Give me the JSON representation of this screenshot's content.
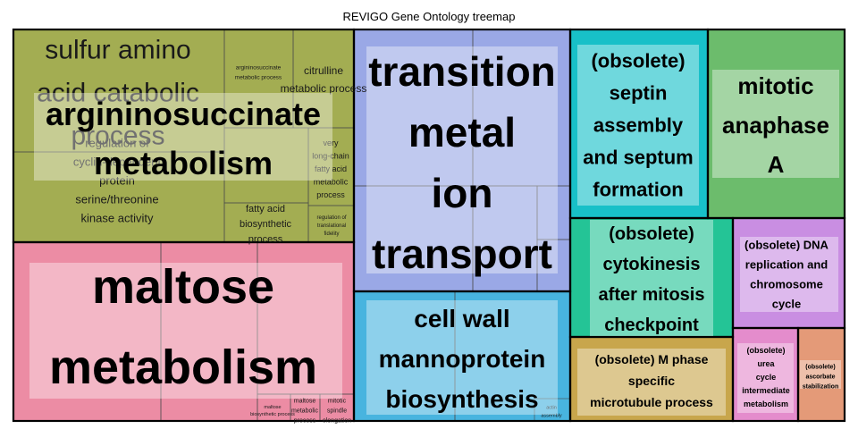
{
  "chart_data": {
    "type": "treemap",
    "title": "REVIGO Gene Ontology treemap",
    "groups": [
      {
        "name": "argininosuccinate metabolism",
        "color": "#a3ad52",
        "terms": [
          "sulfur amino acid catabolic process",
          "regulation of cyclin-dependent protein serine/threonine kinase activity",
          "argininosuccinate metabolic process",
          "citrulline metabolic process",
          "very long-chain fatty acid metabolic process",
          "fatty acid biosynthetic process",
          "regulation of translational fidelity"
        ]
      },
      {
        "name": "maltose metabolism",
        "color": "#ec8ca4",
        "terms": [
          "maltose biosynthetic process",
          "maltose metabolic process",
          "mitotic spindle elongation"
        ]
      },
      {
        "name": "transition metal ion transport",
        "color": "#9aa8e6",
        "terms": []
      },
      {
        "name": "cell wall mannoprotein biosynthesis",
        "color": "#48b4df",
        "terms": [
          "actin assembly"
        ]
      },
      {
        "name": "(obsolete) septin assembly and septum formation",
        "color": "#18c0c8",
        "terms": []
      },
      {
        "name": "mitotic anaphase A",
        "color": "#6cbc6c",
        "terms": []
      },
      {
        "name": "(obsolete) cytokinesis after mitosis checkpoint",
        "color": "#24c496",
        "terms": []
      },
      {
        "name": "(obsolete) DNA replication and chromosome cycle",
        "color": "#c98ee2",
        "terms": []
      },
      {
        "name": "(obsolete) M phase specific microtubule process",
        "color": "#c8a64c",
        "terms": []
      },
      {
        "name": "(obsolete) urea cycle intermediate metabolism",
        "color": "#e48ccc",
        "terms": []
      },
      {
        "name": "(obsolete) ascorbate stabilization",
        "color": "#e49a78",
        "terms": []
      }
    ]
  }
}
